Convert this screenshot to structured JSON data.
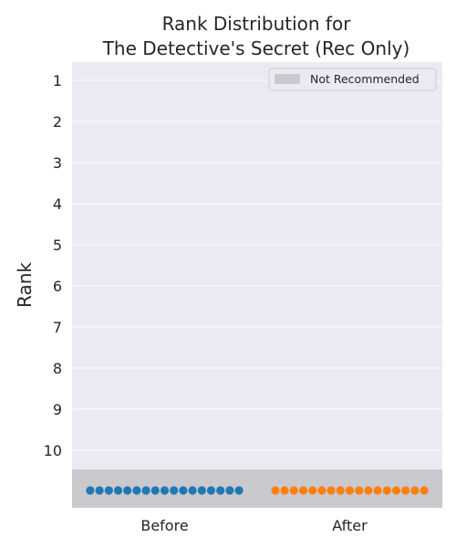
{
  "chart_data": {
    "type": "scatter",
    "title_lines": [
      "Rank Distribution for",
      "The Detective's Secret (Rec Only)"
    ],
    "xlabel": "",
    "ylabel": "Rank",
    "categories": [
      "Before",
      "After"
    ],
    "y_ticks": [
      "1",
      "2",
      "3",
      "4",
      "5",
      "6",
      "7",
      "8",
      "9",
      "10"
    ],
    "ylim": [
      1,
      10
    ],
    "y_inverted": true,
    "grid": true,
    "legend": {
      "position": "top-right",
      "entries": [
        "Not Recommended"
      ]
    },
    "not_recommended_band_color": "#c9c9ce",
    "background_color": "#eaeaf2",
    "series": [
      {
        "category": "Before",
        "color": "#1f77b4",
        "count": 17,
        "rank": "Not Recommended"
      },
      {
        "category": "After",
        "color": "#ff7f0e",
        "count": 17,
        "rank": "Not Recommended"
      }
    ]
  }
}
